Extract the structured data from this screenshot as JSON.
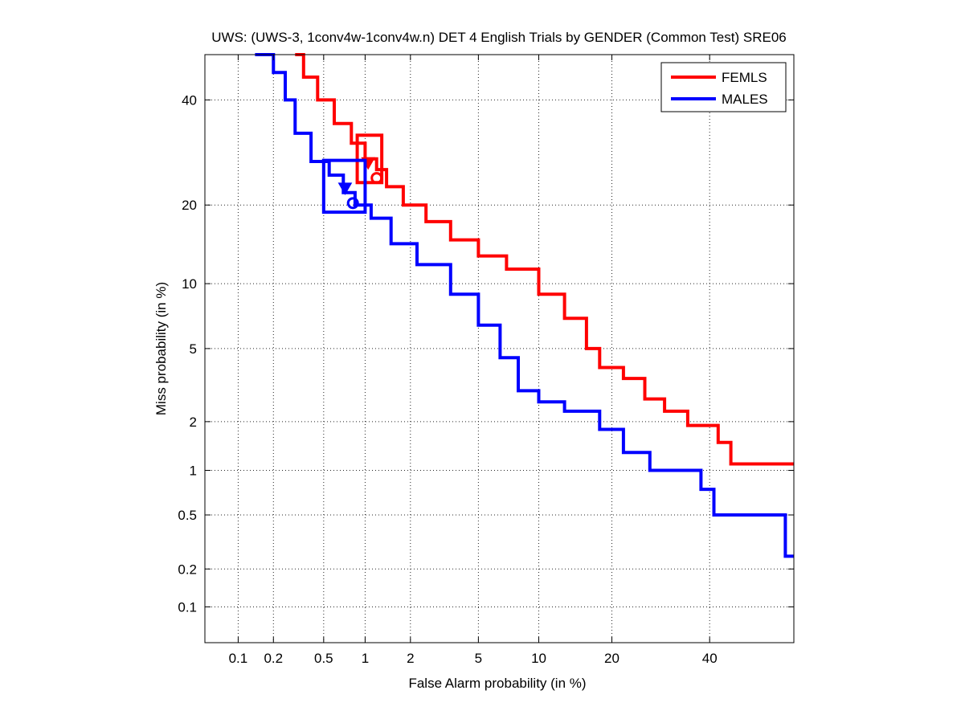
{
  "colors": {
    "FEMLS": "#ff0000",
    "MALES": "#0000ff",
    "axis": "#000000",
    "grid": "#262626"
  },
  "chart_data": {
    "type": "line",
    "scale": "probit (normal deviate)",
    "title": "UWS: (UWS-3, 1conv4w-1conv4w.n) DET 4 English Trials by GENDER (Common Test) SRE06",
    "xlabel": "False Alarm probability (in %)",
    "ylabel": "Miss probability (in %)",
    "xlim": [
      0.05,
      60
    ],
    "ylim": [
      0.05,
      50
    ],
    "xticks": [
      0.1,
      0.2,
      0.5,
      1,
      2,
      5,
      10,
      20,
      40
    ],
    "xtick_labels": [
      "0.1",
      "0.2",
      "0.5",
      "1",
      "2",
      "5",
      "10",
      "20",
      "40"
    ],
    "yticks": [
      0.1,
      0.2,
      0.5,
      1,
      2,
      5,
      10,
      20,
      40
    ],
    "ytick_labels": [
      "0.1",
      "0.2",
      "0.5",
      "1",
      "2",
      "5",
      "10",
      "20",
      "40"
    ],
    "grid": true,
    "legend_position": "top-right",
    "series": [
      {
        "name": "FEMLS",
        "color": "#ff0000",
        "points": [
          [
            0.3,
            50
          ],
          [
            0.35,
            45
          ],
          [
            0.45,
            40
          ],
          [
            0.6,
            35
          ],
          [
            0.8,
            31
          ],
          [
            1.0,
            28
          ],
          [
            1.2,
            26
          ],
          [
            1.4,
            23
          ],
          [
            1.8,
            20
          ],
          [
            2.5,
            17.5
          ],
          [
            3.5,
            15
          ],
          [
            5,
            13
          ],
          [
            7,
            11.5
          ],
          [
            10,
            9
          ],
          [
            13,
            7
          ],
          [
            16,
            5
          ],
          [
            18,
            4
          ],
          [
            22,
            3.5
          ],
          [
            26,
            2.7
          ],
          [
            30,
            2.3
          ],
          [
            35,
            1.9
          ],
          [
            42,
            1.5
          ],
          [
            45,
            1.1
          ],
          [
            60,
            1.1
          ]
        ],
        "actual_dcf": [
          1.2,
          24.5
        ],
        "min_dcf": [
          1.05,
          27.3
        ],
        "confidence_box": {
          "fa": [
            0.88,
            1.3
          ],
          "miss": [
            23.7,
            32.6
          ]
        }
      },
      {
        "name": "MALES",
        "color": "#0000ff",
        "points": [
          [
            0.14,
            50
          ],
          [
            0.2,
            46
          ],
          [
            0.25,
            40
          ],
          [
            0.3,
            33
          ],
          [
            0.4,
            27.5
          ],
          [
            0.55,
            25
          ],
          [
            0.7,
            22
          ],
          [
            0.85,
            20
          ],
          [
            1.1,
            18
          ],
          [
            1.5,
            14.5
          ],
          [
            2.2,
            12
          ],
          [
            3.5,
            9
          ],
          [
            5,
            6.5
          ],
          [
            6.5,
            4.5
          ],
          [
            8,
            3
          ],
          [
            10,
            2.6
          ],
          [
            13,
            2.3
          ],
          [
            18,
            1.8
          ],
          [
            22,
            1.3
          ],
          [
            27,
            1
          ],
          [
            38,
            0.75
          ],
          [
            41,
            0.5
          ],
          [
            58,
            0.5
          ],
          [
            58,
            0.25
          ],
          [
            60,
            0.25
          ]
        ],
        "actual_dcf": [
          0.82,
          20.3
        ],
        "min_dcf": [
          0.72,
          22.8
        ],
        "confidence_box": {
          "fa": [
            0.5,
            1.0
          ],
          "miss": [
            18.9,
            27.7
          ]
        }
      }
    ]
  }
}
